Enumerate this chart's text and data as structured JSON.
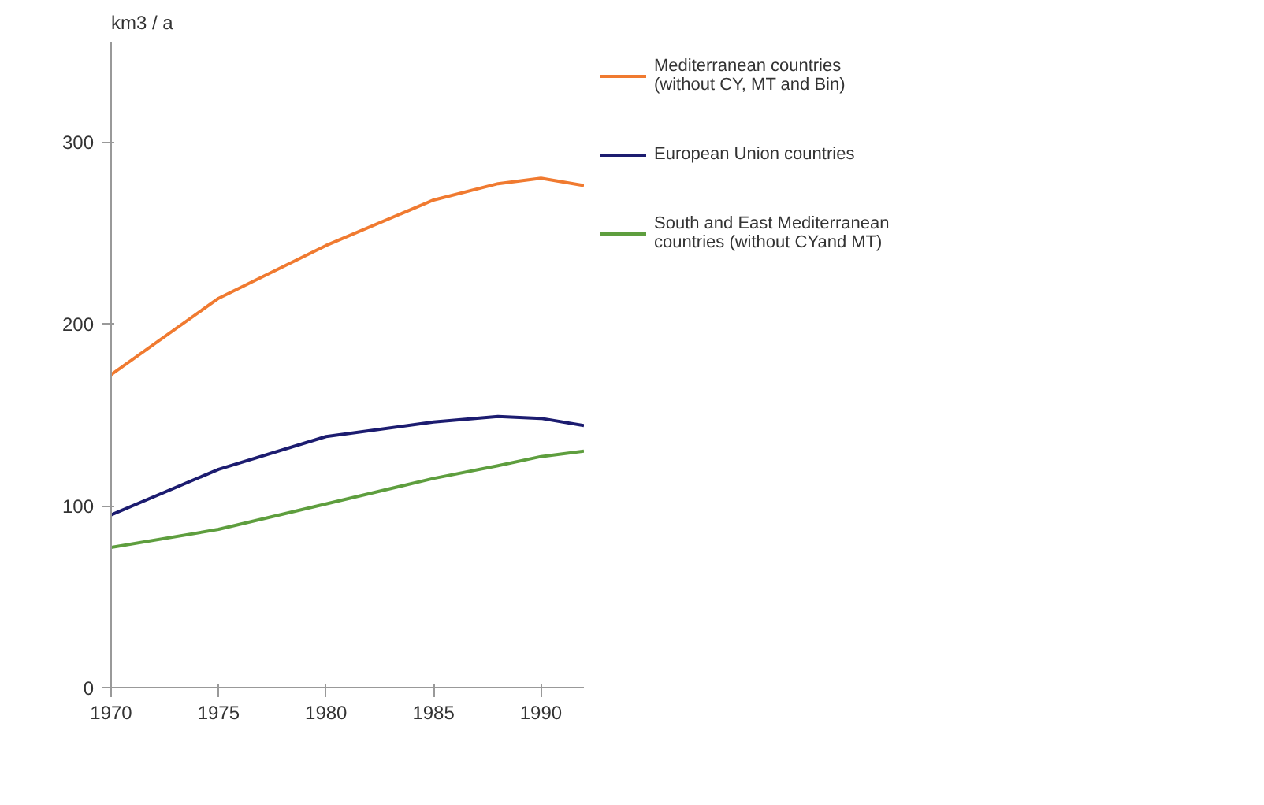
{
  "chart_data": {
    "type": "line",
    "ylabel": "km3 / a",
    "x": [
      1970,
      1975,
      1980,
      1985,
      1988,
      1990,
      1992
    ],
    "series": [
      {
        "name": "Mediterranean countries (without CY, MT and Bin)",
        "color": "#f07a30",
        "values": [
          172,
          214,
          243,
          268,
          277,
          280,
          276
        ]
      },
      {
        "name": "European Union countries",
        "color": "#1c1c70",
        "values": [
          95,
          120,
          138,
          146,
          149,
          148,
          144
        ]
      },
      {
        "name": "South and East Mediterranean countries (without CYand MT)",
        "color": "#5e9e3e",
        "values": [
          77,
          87,
          101,
          115,
          122,
          127,
          130
        ]
      }
    ],
    "xlim": [
      1970,
      1992
    ],
    "ylim": [
      0,
      355
    ],
    "xticks": [
      1970,
      1975,
      1980,
      1985,
      1990
    ],
    "yticks": [
      0,
      100,
      200,
      300
    ],
    "grid": false,
    "legend": "right",
    "line_style": "solid"
  }
}
